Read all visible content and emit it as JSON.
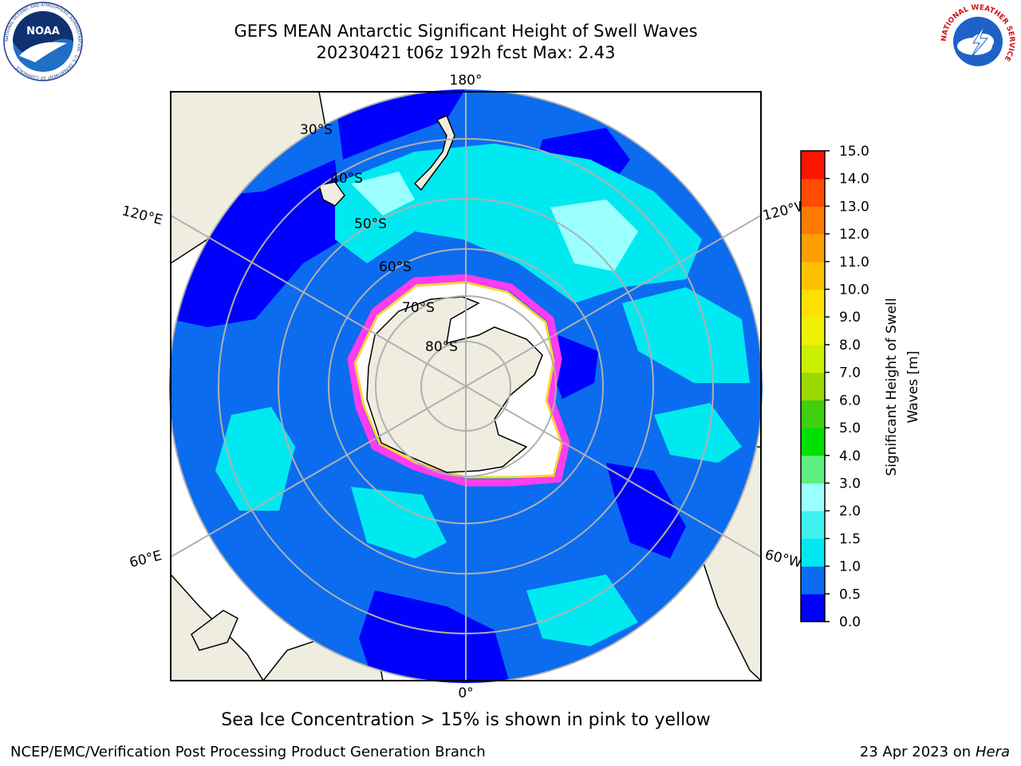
{
  "header": {
    "title_line1": "GEFS MEAN Antarctic Significant Height of Swell Waves",
    "title_line2": "20230421 t06z 192h fcst   Max: 2.43"
  },
  "map": {
    "projection": "south-polar-stereographic",
    "lat_circles": [
      "30°S",
      "40°S",
      "50°S",
      "60°S",
      "70°S",
      "80°S"
    ],
    "lon_labels": {
      "top": "180°",
      "bottom": "0°",
      "upper_left": "120°E",
      "upper_right": "120°W",
      "lower_left": "60°E",
      "lower_right": "60°W"
    }
  },
  "colorbar": {
    "label": "Significant Height of Swell Waves [m]",
    "label_line1": "Significant Height of Swell",
    "label_line2": "Waves [m]",
    "ticks": [
      "0.0",
      "0.5",
      "1.0",
      "1.5",
      "2.0",
      "3.0",
      "4.0",
      "5.0",
      "6.0",
      "7.0",
      "8.0",
      "9.0",
      "10.0",
      "11.0",
      "12.0",
      "13.0",
      "14.0",
      "15.0"
    ],
    "colors": [
      "#0000ff",
      "#0b6cf0",
      "#00e9f0",
      "#40f2ee",
      "#99ffff",
      "#5ef080",
      "#00e000",
      "#3ed00e",
      "#9ad800",
      "#cbef00",
      "#eef200",
      "#ffe000",
      "#ffc000",
      "#ff9e00",
      "#ff7a00",
      "#ff4a00",
      "#ff1400"
    ]
  },
  "note": "Sea Ice Concentration > 15% is shown in pink to yellow",
  "footer": {
    "left": "NCEP/EMC/Verification Post Processing Product Generation Branch",
    "right_prefix": "23 Apr 2023 on ",
    "right_host": "Hera"
  },
  "logos": {
    "noaa_text": "NOAA",
    "noaa_ring": "NATIONAL OCEANIC AND ATMOSPHERIC ADMINISTRATION · U.S. DEPARTMENT OF COMMERCE",
    "nws_ring": "NATIONAL WEATHER SERVICE"
  }
}
